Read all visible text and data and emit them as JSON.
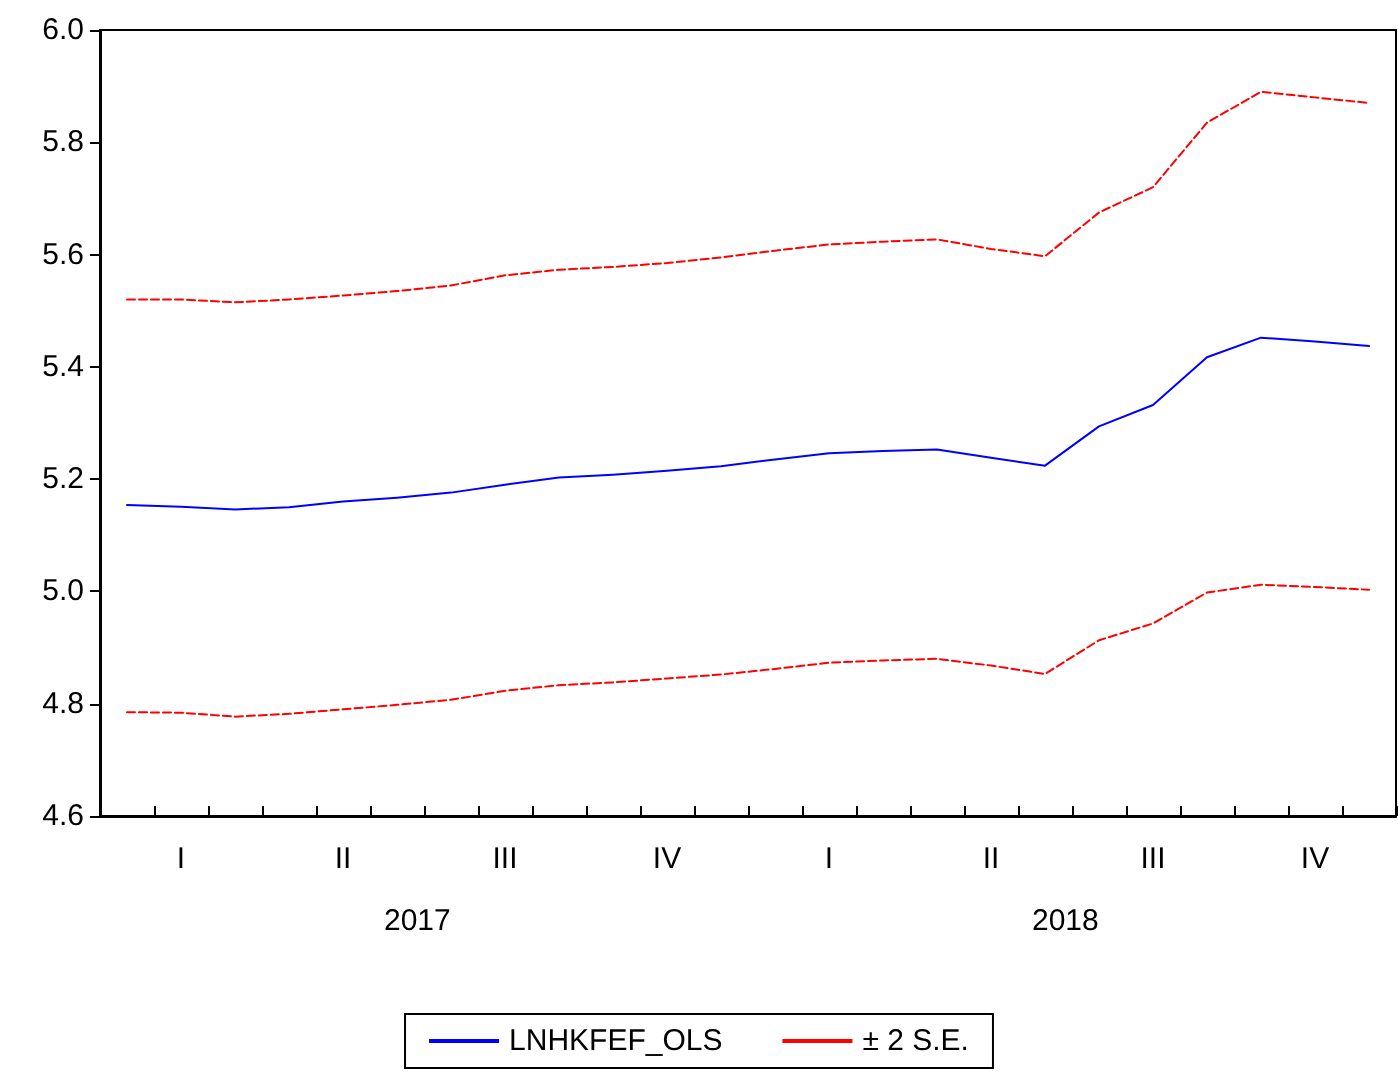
{
  "chart_data": {
    "type": "line",
    "categories": [
      null,
      "I",
      null,
      null,
      "II",
      null,
      null,
      "III",
      null,
      null,
      "IV",
      null,
      null,
      "I",
      null,
      null,
      "II",
      null,
      null,
      "III",
      null,
      null,
      "IV",
      null
    ],
    "annotations": [
      "2017",
      "2018"
    ],
    "series": [
      {
        "name": "LNHKFEF_OLS",
        "color": "#0000ff",
        "line_style": "solid",
        "values": [
          5.154,
          5.151,
          5.146,
          5.15,
          5.16,
          5.167,
          5.176,
          5.19,
          5.203,
          5.208,
          5.215,
          5.223,
          5.235,
          5.246,
          5.25,
          5.253,
          5.238,
          5.224,
          5.294,
          5.332,
          5.417,
          5.452,
          5.445,
          5.437
        ]
      },
      {
        "name": "± 2 S.E.",
        "color": "#ff0000",
        "line_style": "dashed",
        "values": [
          5.52,
          5.52,
          5.515,
          5.52,
          5.527,
          5.535,
          5.545,
          5.563,
          5.573,
          5.578,
          5.585,
          5.595,
          5.607,
          5.618,
          5.623,
          5.627,
          5.61,
          5.597,
          5.675,
          5.72,
          5.835,
          5.89,
          5.88,
          5.87
        ]
      },
      {
        "color": "#ff0000",
        "line_style": "dashed",
        "values": [
          4.785,
          4.784,
          4.777,
          4.782,
          4.79,
          4.798,
          4.807,
          4.823,
          4.833,
          4.838,
          4.845,
          4.852,
          4.862,
          4.873,
          4.877,
          4.88,
          4.868,
          4.853,
          4.913,
          4.943,
          4.998,
          5.012,
          5.008,
          5.003
        ]
      }
    ],
    "ylim": [
      4.6,
      6.0
    ],
    "yticks": [
      {
        "value": 4.6,
        "label": "4.6"
      },
      {
        "value": 4.8,
        "label": "4.8"
      },
      {
        "value": 5.0,
        "label": "5.0"
      },
      {
        "value": 5.2,
        "label": "5.2"
      },
      {
        "value": 5.4,
        "label": "5.4"
      },
      {
        "value": 5.6,
        "label": "5.6"
      },
      {
        "value": 5.8,
        "label": "5.8"
      },
      {
        "value": 6.0,
        "label": "6.0"
      }
    ],
    "grid": false,
    "legend": "bottom",
    "marker": "none"
  }
}
